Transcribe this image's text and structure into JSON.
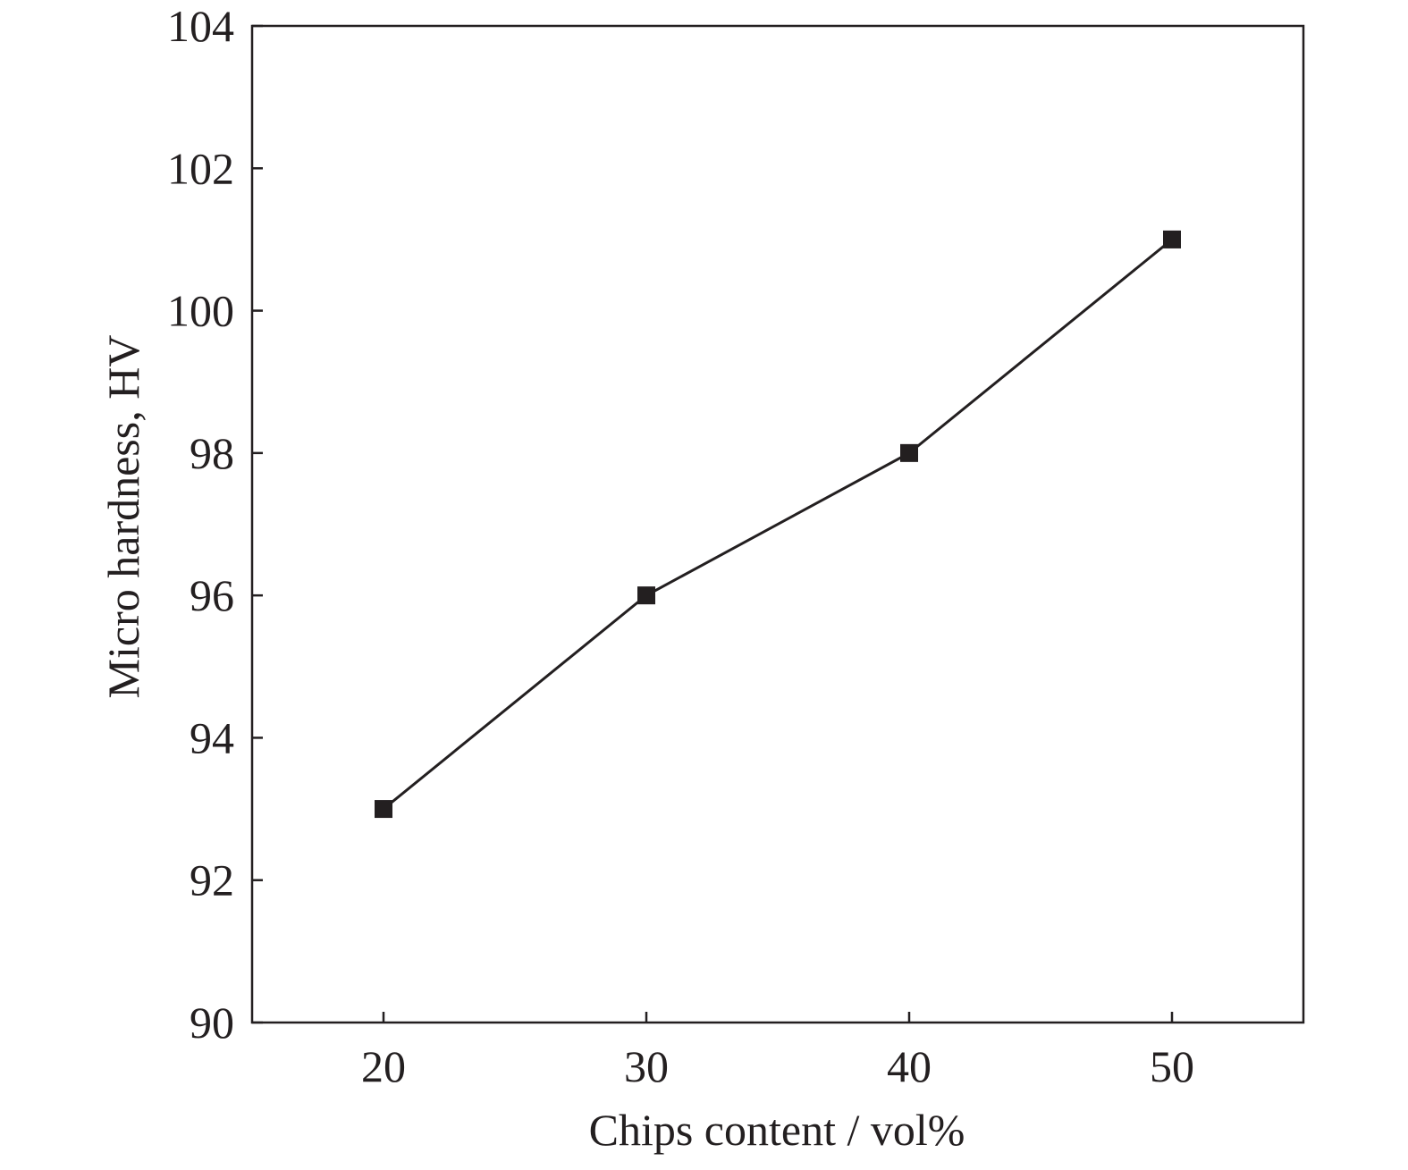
{
  "chart_data": {
    "type": "line",
    "title": "",
    "xlabel": "Chips content / vol%",
    "ylabel": "Micro hardness, HV",
    "x": [
      20,
      30,
      40,
      50
    ],
    "series": [
      {
        "values": [
          93,
          96,
          98,
          101
        ],
        "marker": "square"
      }
    ],
    "xlim": [
      15,
      55
    ],
    "ylim": [
      90,
      104
    ],
    "xticks": [
      20,
      30,
      40,
      50
    ],
    "yticks": [
      90,
      92,
      94,
      96,
      98,
      100,
      102,
      104
    ],
    "xtick_labels": [
      "20",
      "30",
      "40",
      "50"
    ],
    "ytick_labels": [
      "90",
      "92",
      "94",
      "96",
      "98",
      "100",
      "102",
      "104"
    ],
    "grid": false,
    "line_color": "#231f20"
  }
}
